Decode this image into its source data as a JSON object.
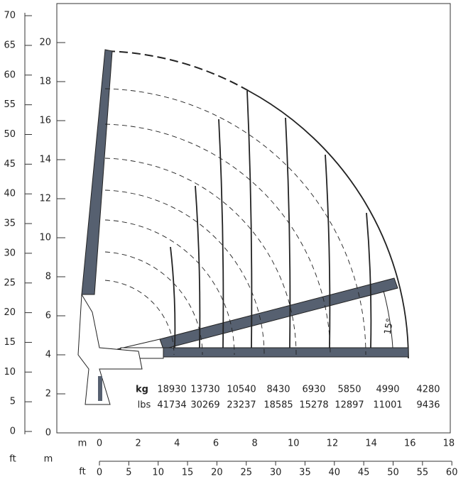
{
  "left_ft_axis": {
    "ticks": [
      0,
      5,
      10,
      15,
      20,
      25,
      30,
      35,
      40,
      45,
      50,
      55,
      60,
      65,
      70
    ]
  },
  "left_m_axis": {
    "ticks": [
      0,
      2,
      4,
      6,
      8,
      10,
      12,
      14,
      16,
      18,
      20
    ]
  },
  "bottom_m_axis": {
    "unit": "m",
    "ticks": [
      0,
      2,
      4,
      6,
      8,
      10,
      12,
      14,
      16,
      18
    ]
  },
  "bottom_ft_axis": {
    "unit": "ft",
    "ticks": [
      0,
      5,
      10,
      15,
      20,
      25,
      30,
      35,
      40,
      45,
      50,
      55,
      60
    ]
  },
  "side_units": {
    "ft": "ft",
    "m": "m"
  },
  "loads": {
    "kg_label": "kg",
    "kg": [
      18930,
      13730,
      10540,
      8430,
      6930,
      5850,
      4990,
      4280
    ],
    "lbs_label": "lbs",
    "lbs": [
      41734,
      30269,
      23237,
      18585,
      15278,
      12897,
      11001,
      9436
    ]
  },
  "angle_label": "15°"
}
